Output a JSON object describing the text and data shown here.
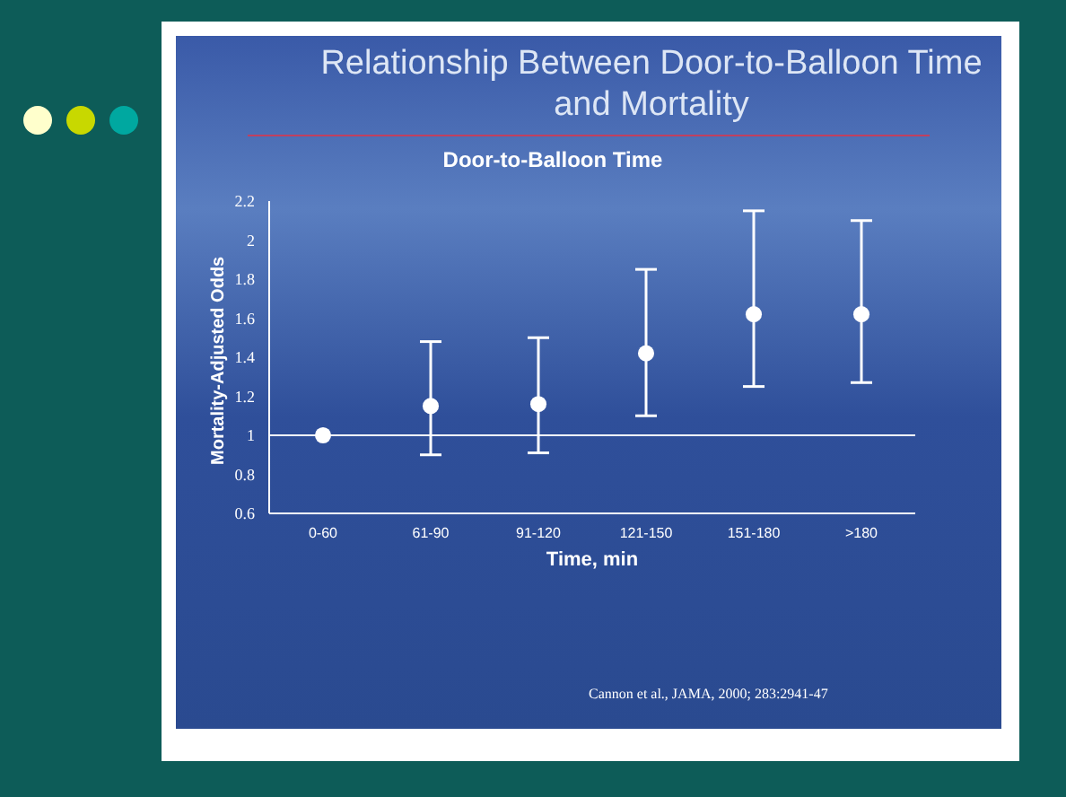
{
  "chart_data": {
    "type": "scatter",
    "title": "Relationship Between Door-to-Balloon Time and Mortality",
    "subtitle": "Door-to-Balloon Time",
    "xlabel": "Time, min",
    "ylabel": "Mortality-Adjusted Odds",
    "categories": [
      "0-60",
      "61-90",
      "91-120",
      "121-150",
      "151-180",
      ">180"
    ],
    "series": [
      {
        "color": "#ffffff",
        "values": [
          1.0,
          1.15,
          1.16,
          1.42,
          1.62,
          1.62
        ],
        "errors": [
          null,
          [
            0.9,
            1.48
          ],
          [
            0.91,
            1.5
          ],
          [
            1.1,
            1.85
          ],
          [
            1.25,
            2.15
          ],
          [
            1.27,
            2.1
          ]
        ]
      }
    ],
    "ylim": [
      0.6,
      2.2
    ],
    "yticks": [
      0.6,
      0.8,
      1,
      1.2,
      1.4,
      1.6,
      1.8,
      2,
      2.2
    ],
    "ref_lines": [
      {
        "axis": "y",
        "value": 1,
        "color": "#ffffff"
      }
    ],
    "marker": "circle",
    "grid": false,
    "legend": false,
    "annotations": [
      "Cannon et al., JAMA, 2000; 283:2941-47"
    ]
  }
}
